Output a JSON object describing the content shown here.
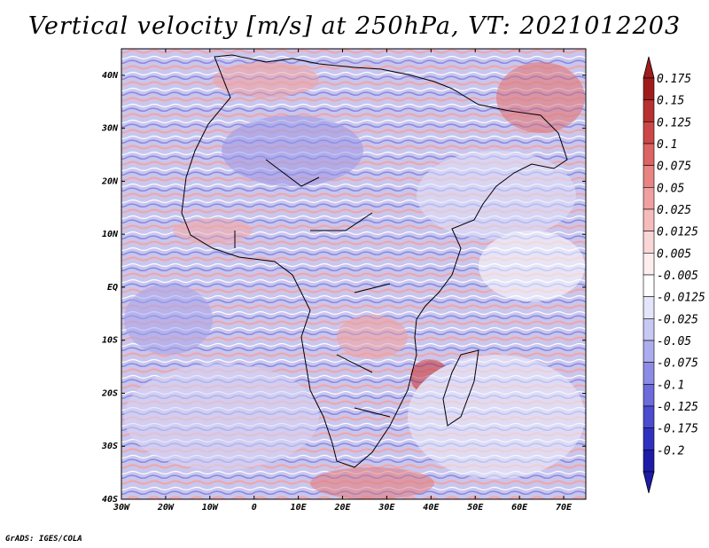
{
  "title": "Vertical velocity [m/s] at 250hPa, VT: 2021012203",
  "credit": "GrADS: IGES/COLA",
  "map": {
    "lon_range": [
      -30,
      75
    ],
    "lat_range": [
      -40,
      45
    ],
    "lat_ticks": [
      {
        "value": 40,
        "label": "40N"
      },
      {
        "value": 30,
        "label": "30N"
      },
      {
        "value": 20,
        "label": "20N"
      },
      {
        "value": 10,
        "label": "10N"
      },
      {
        "value": 0,
        "label": "EQ"
      },
      {
        "value": -10,
        "label": "10S"
      },
      {
        "value": -20,
        "label": "20S"
      },
      {
        "value": -30,
        "label": "30S"
      },
      {
        "value": -40,
        "label": "40S"
      }
    ],
    "lon_ticks": [
      {
        "value": -30,
        "label": "30W"
      },
      {
        "value": -20,
        "label": "20W"
      },
      {
        "value": -10,
        "label": "10W"
      },
      {
        "value": 0,
        "label": "0"
      },
      {
        "value": 10,
        "label": "10E"
      },
      {
        "value": 20,
        "label": "20E"
      },
      {
        "value": 30,
        "label": "30E"
      },
      {
        "value": 40,
        "label": "40E"
      },
      {
        "value": 50,
        "label": "50E"
      },
      {
        "value": 60,
        "label": "60E"
      },
      {
        "value": 70,
        "label": "70E"
      }
    ]
  },
  "colorbar": {
    "levels": [
      {
        "label": "0.175",
        "color": "#a01c1c"
      },
      {
        "label": "0.15",
        "color": "#b83030"
      },
      {
        "label": "0.125",
        "color": "#cc4848"
      },
      {
        "label": "0.1",
        "color": "#dc6464"
      },
      {
        "label": "0.075",
        "color": "#e88484"
      },
      {
        "label": "0.05",
        "color": "#f0a0a0"
      },
      {
        "label": "0.025",
        "color": "#f6bcbc"
      },
      {
        "label": "0.0125",
        "color": "#fad6d6"
      },
      {
        "label": "0.005",
        "color": "#fdeeee"
      },
      {
        "label": "-0.005",
        "color": "#ffffff"
      },
      {
        "label": "-0.0125",
        "color": "#e4e4fa"
      },
      {
        "label": "-0.025",
        "color": "#c8c8f4"
      },
      {
        "label": "-0.05",
        "color": "#acacee"
      },
      {
        "label": "-0.075",
        "color": "#8c8ce6"
      },
      {
        "label": "-0.1",
        "color": "#6c6cdc"
      },
      {
        "label": "-0.125",
        "color": "#4c4cd0"
      },
      {
        "label": "-0.175",
        "color": "#3030c0"
      },
      {
        "label": "-0.2",
        "color": "#1c1ca8"
      }
    ],
    "top_color": "#a01c1c",
    "bottom_color": "#1c1ca8"
  }
}
